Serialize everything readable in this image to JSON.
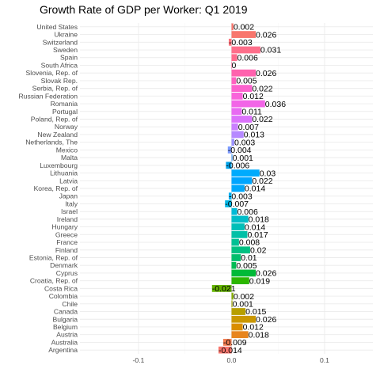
{
  "chart_data": {
    "type": "bar",
    "orientation": "horizontal",
    "title": "Growth Rate of GDP per Worker: Q1 2019",
    "xlabel": "",
    "ylabel": "",
    "xlim": [
      -0.1629,
      0.1519
    ],
    "x_ticks": [
      -0.1,
      0.0,
      0.1
    ],
    "x_tick_labels": [
      "-0.1",
      "0.0",
      "0.1"
    ],
    "grid": true,
    "legend": "none",
    "categories": [
      "Argentina",
      "Australia",
      "Austria",
      "Belgium",
      "Bulgaria",
      "Canada",
      "Chile",
      "Colombia",
      "Costa Rica",
      "Croatia, Rep. of",
      "Cyprus",
      "Denmark",
      "Estonia, Rep. of",
      "Finland",
      "France",
      "Greece",
      "Hungary",
      "Ireland",
      "Israel",
      "Italy",
      "Japan",
      "Korea, Rep. of",
      "Latvia",
      "Lithuania",
      "Luxembourg",
      "Malta",
      "Mexico",
      "Netherlands, The",
      "New Zealand",
      "Norway",
      "Poland, Rep. of",
      "Portugal",
      "Romania",
      "Russian Federation",
      "Serbia, Rep. of",
      "Slovak Rep.",
      "Slovenia, Rep. of",
      "South Africa",
      "Spain",
      "Sweden",
      "Switzerland",
      "Ukraine",
      "United States"
    ],
    "values": [
      -0.014,
      -0.009,
      0.018,
      0.012,
      0.026,
      0.015,
      0.001,
      0.002,
      -0.021,
      0.019,
      0.026,
      0.005,
      0.01,
      0.02,
      0.008,
      0.017,
      0.014,
      0.018,
      0.006,
      -0.007,
      -0.003,
      0.014,
      0.022,
      0.03,
      -0.006,
      0.001,
      -0.004,
      0.003,
      0.013,
      0.007,
      0.022,
      0.011,
      0.036,
      0.012,
      0.022,
      0.005,
      0.026,
      0,
      0.006,
      0.031,
      -0.003,
      0.026,
      0.002
    ],
    "value_labels": [
      "-0.014",
      "-0.009",
      "0.018",
      "0.012",
      "0.026",
      "0.015",
      "0.001",
      "0.002",
      "-0.021",
      "0.019",
      "0.026",
      "0.005",
      "0.01",
      "0.02",
      "0.008",
      "0.017",
      "0.014",
      "0.018",
      "0.006",
      "-0.007",
      "-0.003",
      "0.014",
      "0.022",
      "0.03",
      "-0.006",
      "0.001",
      "-0.004",
      "0.003",
      "0.013",
      "0.007",
      "0.022",
      "0.011",
      "0.036",
      "0.012",
      "0.022",
      "0.005",
      "0.026",
      "0",
      "0.006",
      "0.031",
      "-0.003",
      "0.026",
      "0.002"
    ],
    "colors": [
      "#F8766D",
      "#F17D51",
      "#E7851E",
      "#DA8E00",
      "#CA9700",
      "#B79F00",
      "#A1A600",
      "#86AC00",
      "#64B200",
      "#2BB600",
      "#00BA38",
      "#00BC55",
      "#00BE6C",
      "#00C081",
      "#00C094",
      "#00C0A7",
      "#00BFB8",
      "#00BDC8",
      "#00BAD7",
      "#00B6E5",
      "#00B0F2",
      "#00A8FC",
      "#00A5FF",
      "#00ABFD",
      "#00A1E8",
      "#4BA2FF",
      "#7C9BFF",
      "#9C93FF",
      "#B689FF",
      "#CA7FFF",
      "#DB72FB",
      "#E86AF2",
      "#F265E7",
      "#F963DA",
      "#FC62CD",
      "#FF61BF",
      "#FF62AE",
      "#FF659D",
      "#FF6B8C",
      "#FE6E8A",
      "#FB727C",
      "#F8766D",
      "#F8766D"
    ]
  }
}
